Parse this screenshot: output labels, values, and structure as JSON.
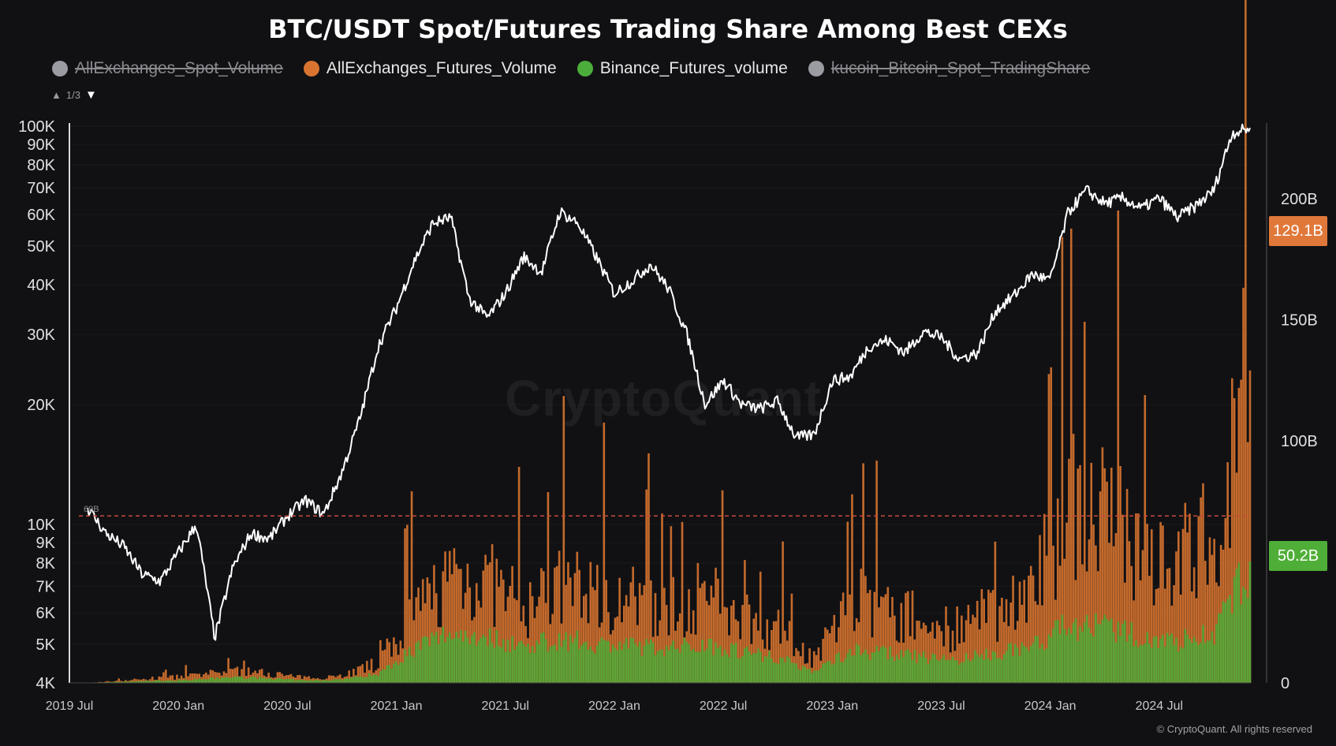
{
  "title": "BTC/USDT Spot/Futures Trading Share Among Best CEXs",
  "legend": [
    {
      "label": "AllExchanges_Spot_Volume",
      "color": "#c6c6cc",
      "active": false
    },
    {
      "label": "AllExchanges_Futures_Volume",
      "color": "#d8742f",
      "active": true
    },
    {
      "label": "Binance_Futures_volume",
      "color": "#4cae3a",
      "active": true
    },
    {
      "label": "kucoin_Bitcoin_Spot_TradingShare",
      "color": "#b0b0b8",
      "active": false
    }
  ],
  "pager": {
    "up": "▲",
    "text": "1/3",
    "down": "▼"
  },
  "watermark": "CryptoQuant",
  "copyright": "© CryptoQuant. All rights reserved",
  "badges": {
    "futures": {
      "text": "129.1B",
      "color": "#e0783a"
    },
    "binance": {
      "text": "50.2B",
      "color": "#4fae37"
    }
  },
  "reference_line": {
    "label": "69B",
    "value": 69,
    "color": "#c84a3a"
  },
  "colors": {
    "price": "#ffffff",
    "futures": "#d8742f",
    "binance": "#4cae3a",
    "background": "#111114"
  },
  "chart_data": {
    "type": "line",
    "x_ticks": [
      "2019 Jul",
      "2020 Jan",
      "2020 Jul",
      "2021 Jan",
      "2021 Jul",
      "2022 Jan",
      "2022 Jul",
      "2023 Jan",
      "2023 Jul",
      "2024 Jan",
      "2024 Jul"
    ],
    "x_range": [
      "2019-07",
      "2024-12"
    ],
    "left_axis": {
      "scale": "log",
      "range": [
        4000,
        100000
      ],
      "ticks": [
        "4K",
        "5K",
        "6K",
        "7K",
        "8K",
        "9K",
        "10K",
        "20K",
        "30K",
        "40K",
        "50K",
        "60K",
        "70K",
        "80K",
        "90K",
        "100K"
      ]
    },
    "right_axis": {
      "scale": "linear",
      "range": [
        0,
        230
      ],
      "unit": "B",
      "ticks": [
        "0",
        "100B",
        "150B",
        "200B"
      ]
    },
    "series": [
      {
        "name": "BTC price",
        "axis": "left",
        "x": [
          "2019-08",
          "2019-09",
          "2019-10",
          "2019-11",
          "2019-12",
          "2020-01",
          "2020-02",
          "2020-03",
          "2020-04",
          "2020-05",
          "2020-06",
          "2020-07",
          "2020-08",
          "2020-09",
          "2020-10",
          "2020-11",
          "2020-12",
          "2021-01",
          "2021-02",
          "2021-03",
          "2021-04",
          "2021-05",
          "2021-06",
          "2021-07",
          "2021-08",
          "2021-09",
          "2021-10",
          "2021-11",
          "2021-12",
          "2022-01",
          "2022-02",
          "2022-03",
          "2022-04",
          "2022-05",
          "2022-06",
          "2022-07",
          "2022-08",
          "2022-09",
          "2022-10",
          "2022-11",
          "2022-12",
          "2023-01",
          "2023-02",
          "2023-03",
          "2023-04",
          "2023-05",
          "2023-06",
          "2023-07",
          "2023-08",
          "2023-09",
          "2023-10",
          "2023-11",
          "2023-12",
          "2024-01",
          "2024-02",
          "2024-03",
          "2024-04",
          "2024-05",
          "2024-06",
          "2024-07",
          "2024-08",
          "2024-09",
          "2024-10",
          "2024-11",
          "2024-12"
        ],
        "values": [
          11000,
          9500,
          8800,
          7500,
          7200,
          8500,
          10000,
          5200,
          7800,
          9500,
          9200,
          10500,
          11500,
          10600,
          13500,
          18500,
          28000,
          35000,
          46000,
          57000,
          59000,
          37000,
          33000,
          38000,
          47000,
          43000,
          61000,
          57000,
          47000,
          38000,
          41000,
          45000,
          39000,
          30000,
          20000,
          23000,
          20000,
          19500,
          20400,
          16500,
          16800,
          23000,
          23500,
          28000,
          29000,
          27000,
          30500,
          29500,
          26000,
          27000,
          34500,
          37500,
          42500,
          41000,
          61000,
          69000,
          64000,
          66000,
          62000,
          66000,
          59000,
          63000,
          69000,
          96000,
          99000
        ]
      },
      {
        "name": "AllExchanges_Futures_Volume",
        "axis": "right",
        "kind": "bar",
        "x": [
          "2019-08",
          "2019-10",
          "2019-12",
          "2020-02",
          "2020-04",
          "2020-06",
          "2020-08",
          "2020-10",
          "2020-12",
          "2021-02",
          "2021-04",
          "2021-06",
          "2021-08",
          "2021-10",
          "2021-12",
          "2022-02",
          "2022-04",
          "2022-06",
          "2022-08",
          "2022-10",
          "2022-12",
          "2023-02",
          "2023-04",
          "2023-06",
          "2023-08",
          "2023-10",
          "2023-12",
          "2024-02",
          "2024-04",
          "2024-06",
          "2024-08",
          "2024-10",
          "2024-12"
        ],
        "values": [
          0,
          1,
          2,
          3,
          5,
          4,
          2,
          3,
          8,
          28,
          45,
          42,
          30,
          40,
          38,
          34,
          30,
          36,
          28,
          22,
          10,
          34,
          30,
          25,
          22,
          30,
          38,
          75,
          70,
          58,
          50,
          62,
          129.1
        ]
      },
      {
        "name": "Binance_Futures_volume",
        "axis": "right",
        "kind": "bar",
        "x": [
          "2019-08",
          "2019-10",
          "2019-12",
          "2020-02",
          "2020-04",
          "2020-06",
          "2020-08",
          "2020-10",
          "2020-12",
          "2021-02",
          "2021-04",
          "2021-06",
          "2021-08",
          "2021-10",
          "2021-12",
          "2022-02",
          "2022-04",
          "2022-06",
          "2022-08",
          "2022-10",
          "2022-12",
          "2023-02",
          "2023-04",
          "2023-06",
          "2023-08",
          "2023-10",
          "2023-12",
          "2024-02",
          "2024-04",
          "2024-06",
          "2024-08",
          "2024-10",
          "2024-12"
        ],
        "values": [
          0,
          0.5,
          1,
          1.5,
          2.5,
          2,
          1,
          1.5,
          4,
          15,
          22,
          20,
          16,
          19,
          17,
          16,
          15,
          17,
          14,
          11,
          5,
          14,
          13,
          11,
          10,
          13,
          16,
          25,
          24,
          20,
          18,
          22,
          50.2
        ]
      }
    ]
  }
}
